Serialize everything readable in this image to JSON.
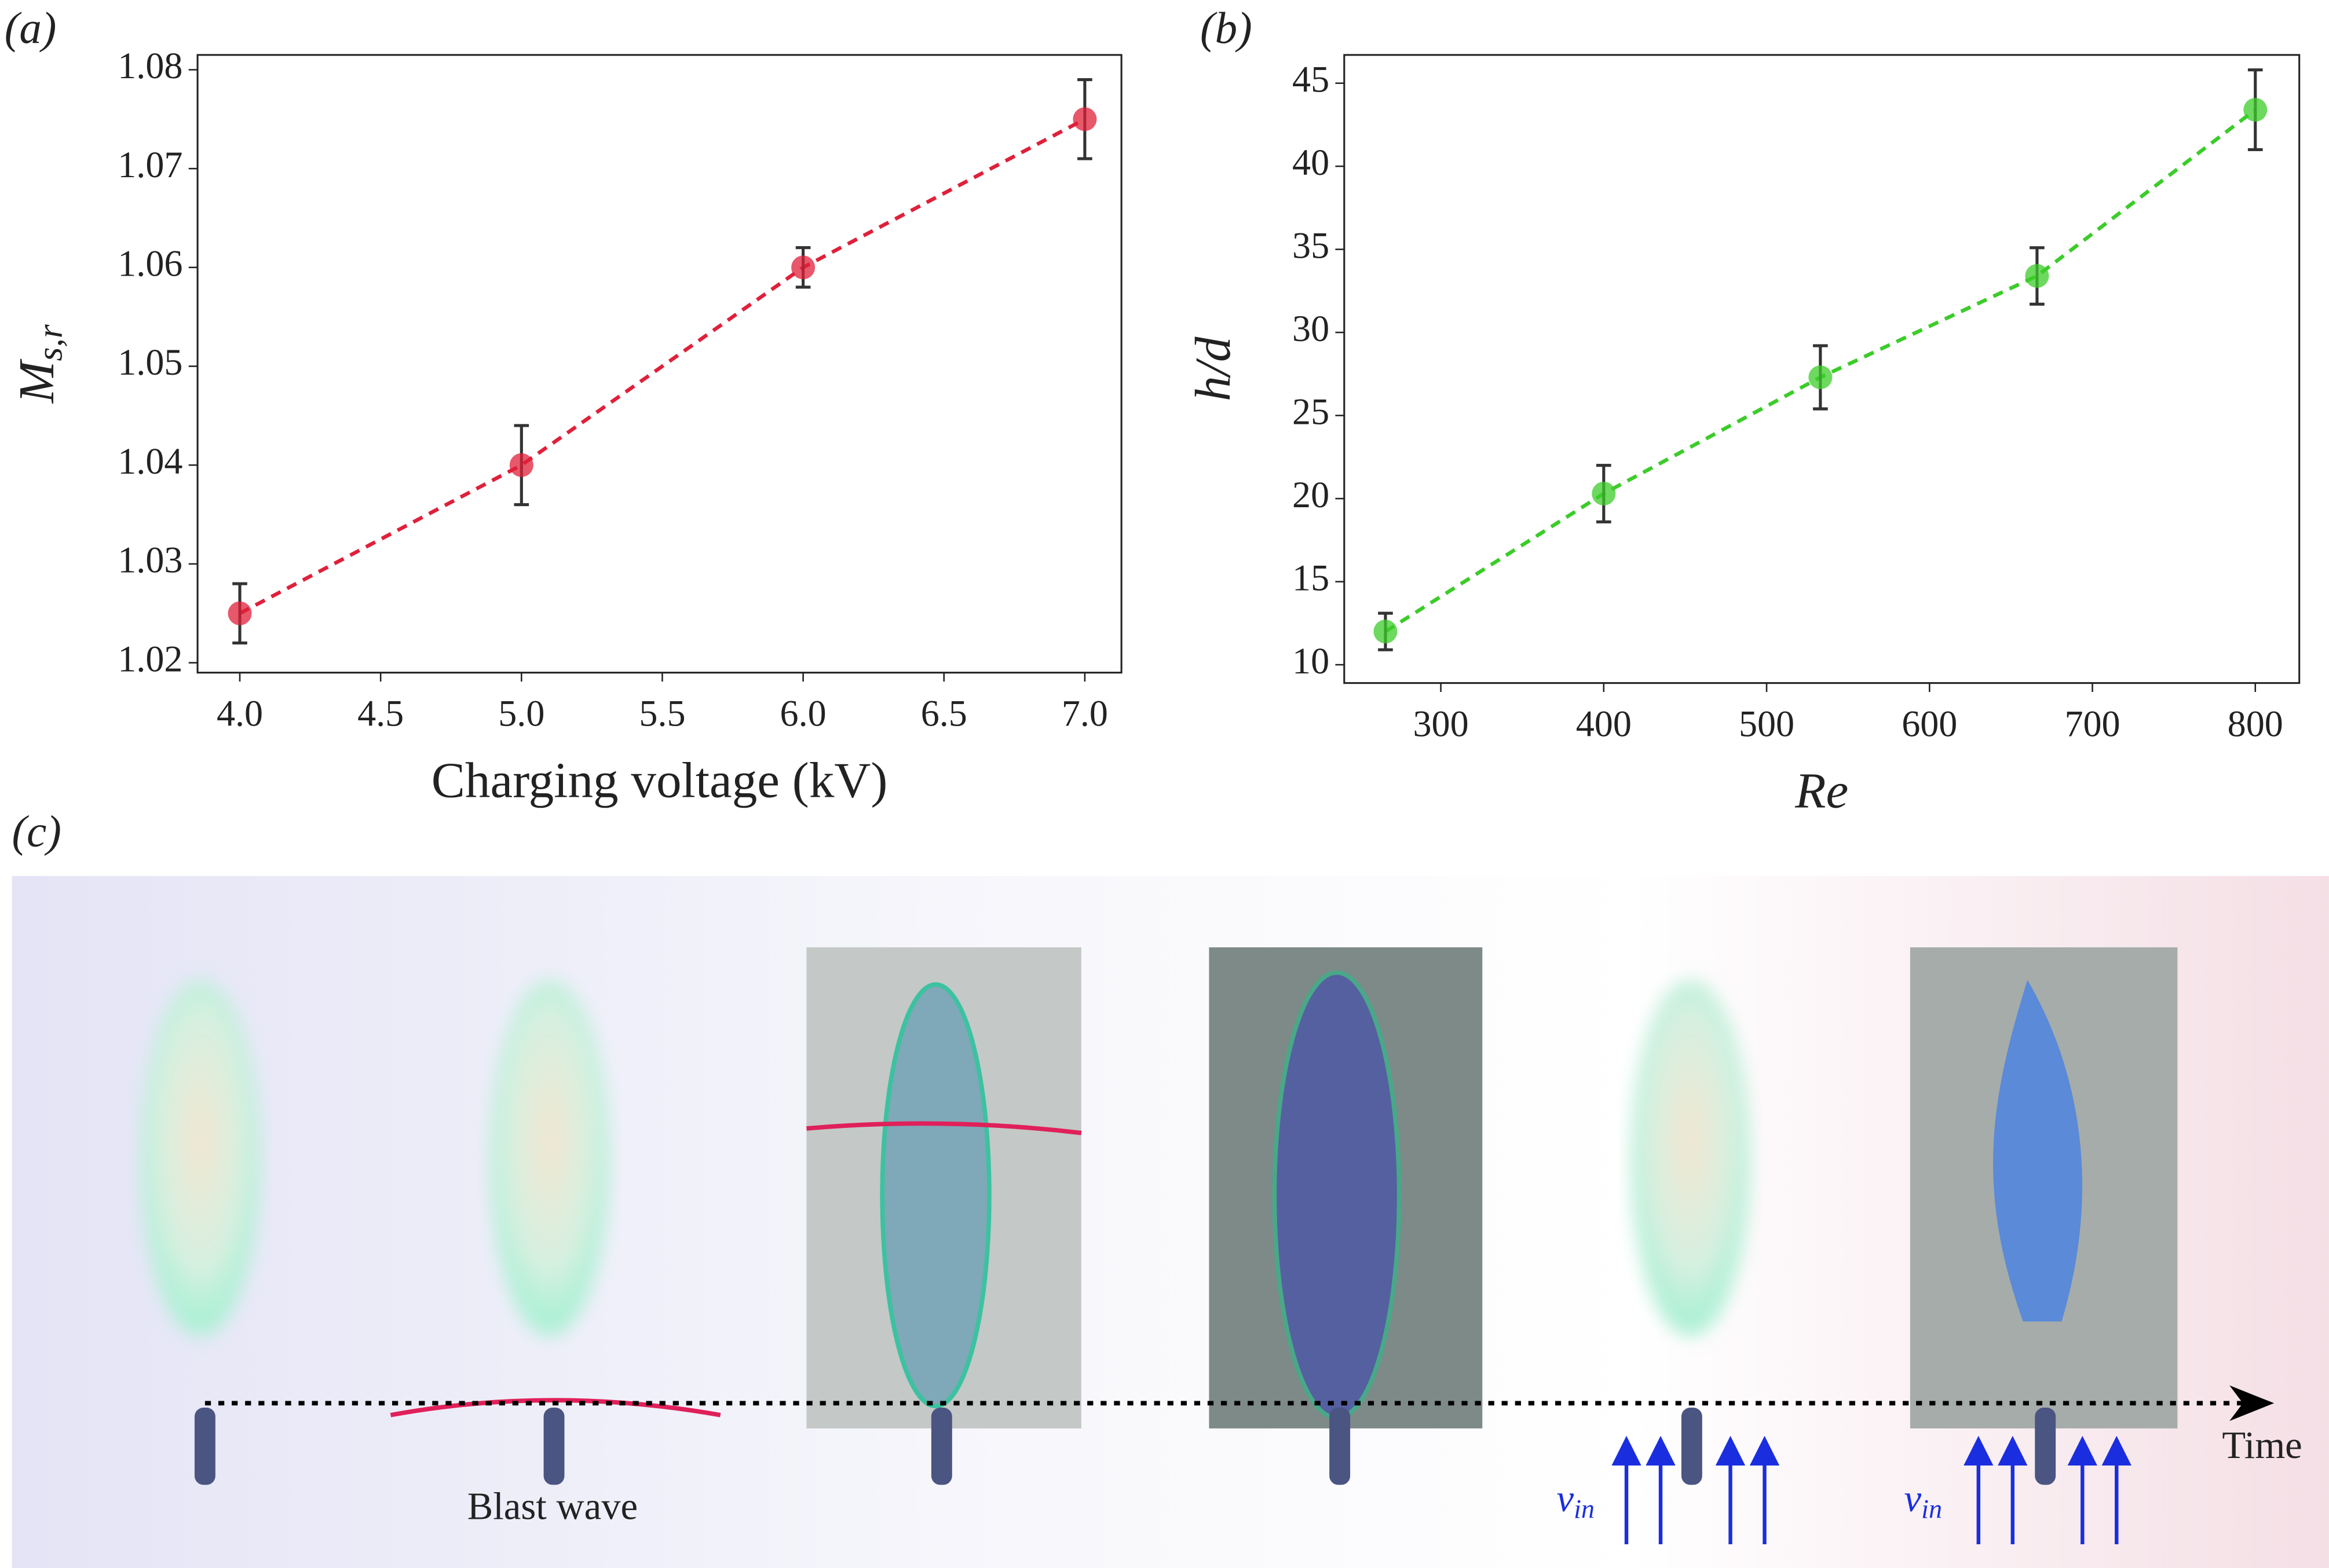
{
  "chart_data": [
    {
      "type": "line",
      "panel": "(a)",
      "x_label": "Charging voltage (kV)",
      "y_label": [
        "M",
        "s,r"
      ],
      "x": [
        4,
        5,
        6,
        7
      ],
      "series": [
        {
          "name": "Ms,r",
          "color": "#e0203a",
          "values": [
            1.025,
            1.04,
            1.06,
            1.075
          ],
          "errors": [
            0.003,
            0.004,
            0.002,
            0.004
          ]
        }
      ],
      "xlim": [
        3.85,
        7.13
      ],
      "ylim": [
        1.019,
        1.0815
      ],
      "xticks": [
        {
          "value": 4,
          "label": "4.0"
        },
        4.5,
        {
          "value": 5,
          "label": "5.0"
        },
        5.5,
        {
          "value": 6,
          "label": "6.0"
        },
        6.5,
        {
          "value": 7,
          "label": "7.0"
        }
      ],
      "yticks": [
        1.02,
        1.03,
        1.04,
        1.05,
        1.06,
        1.07,
        1.08
      ]
    },
    {
      "type": "line",
      "panel": "(b)",
      "x_label": "Re",
      "y_label": [
        "h/d"
      ],
      "x": [
        266,
        400,
        533,
        666,
        800
      ],
      "series": [
        {
          "name": "h/d",
          "color": "#3ccc2a",
          "values": [
            12,
            20.3,
            27.3,
            33.4,
            43.4
          ],
          "errors": [
            1.1,
            1.7,
            1.9,
            1.7,
            2.4
          ]
        }
      ],
      "xlim": [
        240.7,
        827
      ],
      "ylim": [
        8.9,
        46.7
      ],
      "xticks": [
        300,
        400,
        500,
        600,
        700,
        800
      ],
      "yticks": [
        10,
        15,
        20,
        25,
        30,
        35,
        40,
        45
      ]
    }
  ],
  "panel_c": {
    "label": "(c)",
    "blast_wave": "Blast wave",
    "velocity": [
      "v",
      "in"
    ],
    "time": "Time"
  }
}
